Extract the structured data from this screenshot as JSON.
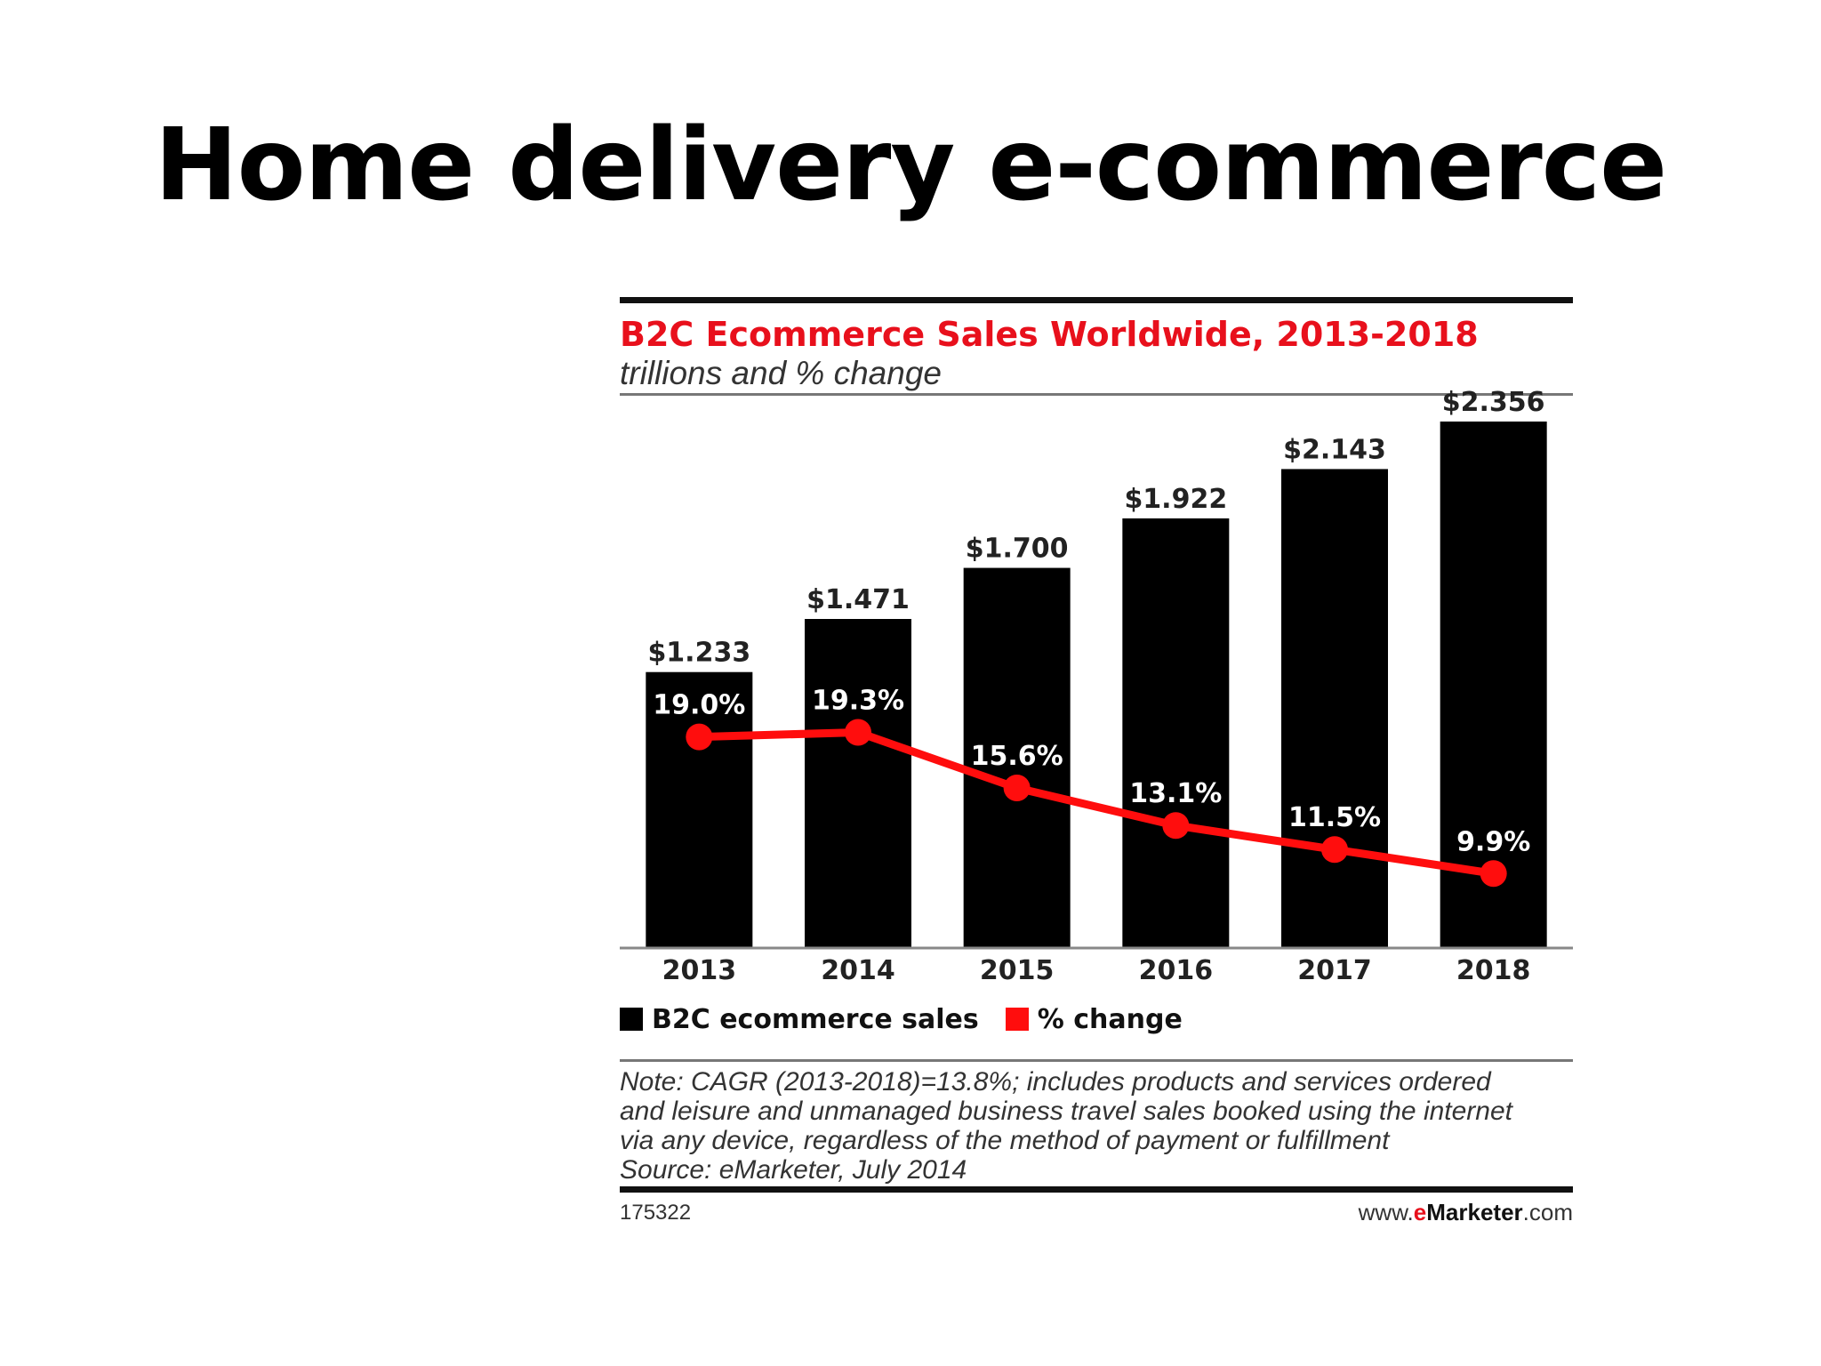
{
  "slide": {
    "title": "Home delivery e-commerce"
  },
  "chart_data": {
    "type": "bar",
    "title": "B2C Ecommerce Sales Worldwide, 2013-2018",
    "subtitle": "trillions and % change",
    "categories": [
      "2013",
      "2014",
      "2015",
      "2016",
      "2017",
      "2018"
    ],
    "series": [
      {
        "name": "B2C ecommerce sales",
        "type": "bar",
        "values": [
          1.233,
          1.471,
          1.7,
          1.922,
          2.143,
          2.356
        ],
        "labels": [
          "$1.233",
          "$1.471",
          "$1.700",
          "$1.922",
          "$2.143",
          "$2.356"
        ],
        "color": "#000000"
      },
      {
        "name": "% change",
        "type": "line",
        "values": [
          19.0,
          19.3,
          15.6,
          13.1,
          11.5,
          9.9
        ],
        "labels": [
          "19.0%",
          "19.3%",
          "15.6%",
          "13.1%",
          "11.5%",
          "9.9%"
        ],
        "color": "#ff0d0d"
      }
    ],
    "legend_position": "bottom-left",
    "grid": false,
    "note_lines": [
      "Note: CAGR (2013-2018)=13.8%; includes products and services ordered",
      "and leisure and unmanaged business travel sales booked using the internet",
      "via any device, regardless of the method of payment or fulfillment",
      "Source: eMarketer, July 2014"
    ],
    "chart_id": "175322",
    "brand": {
      "prefix": "www.",
      "e": "e",
      "marketer": "Marketer",
      "suffix": ".com"
    }
  }
}
